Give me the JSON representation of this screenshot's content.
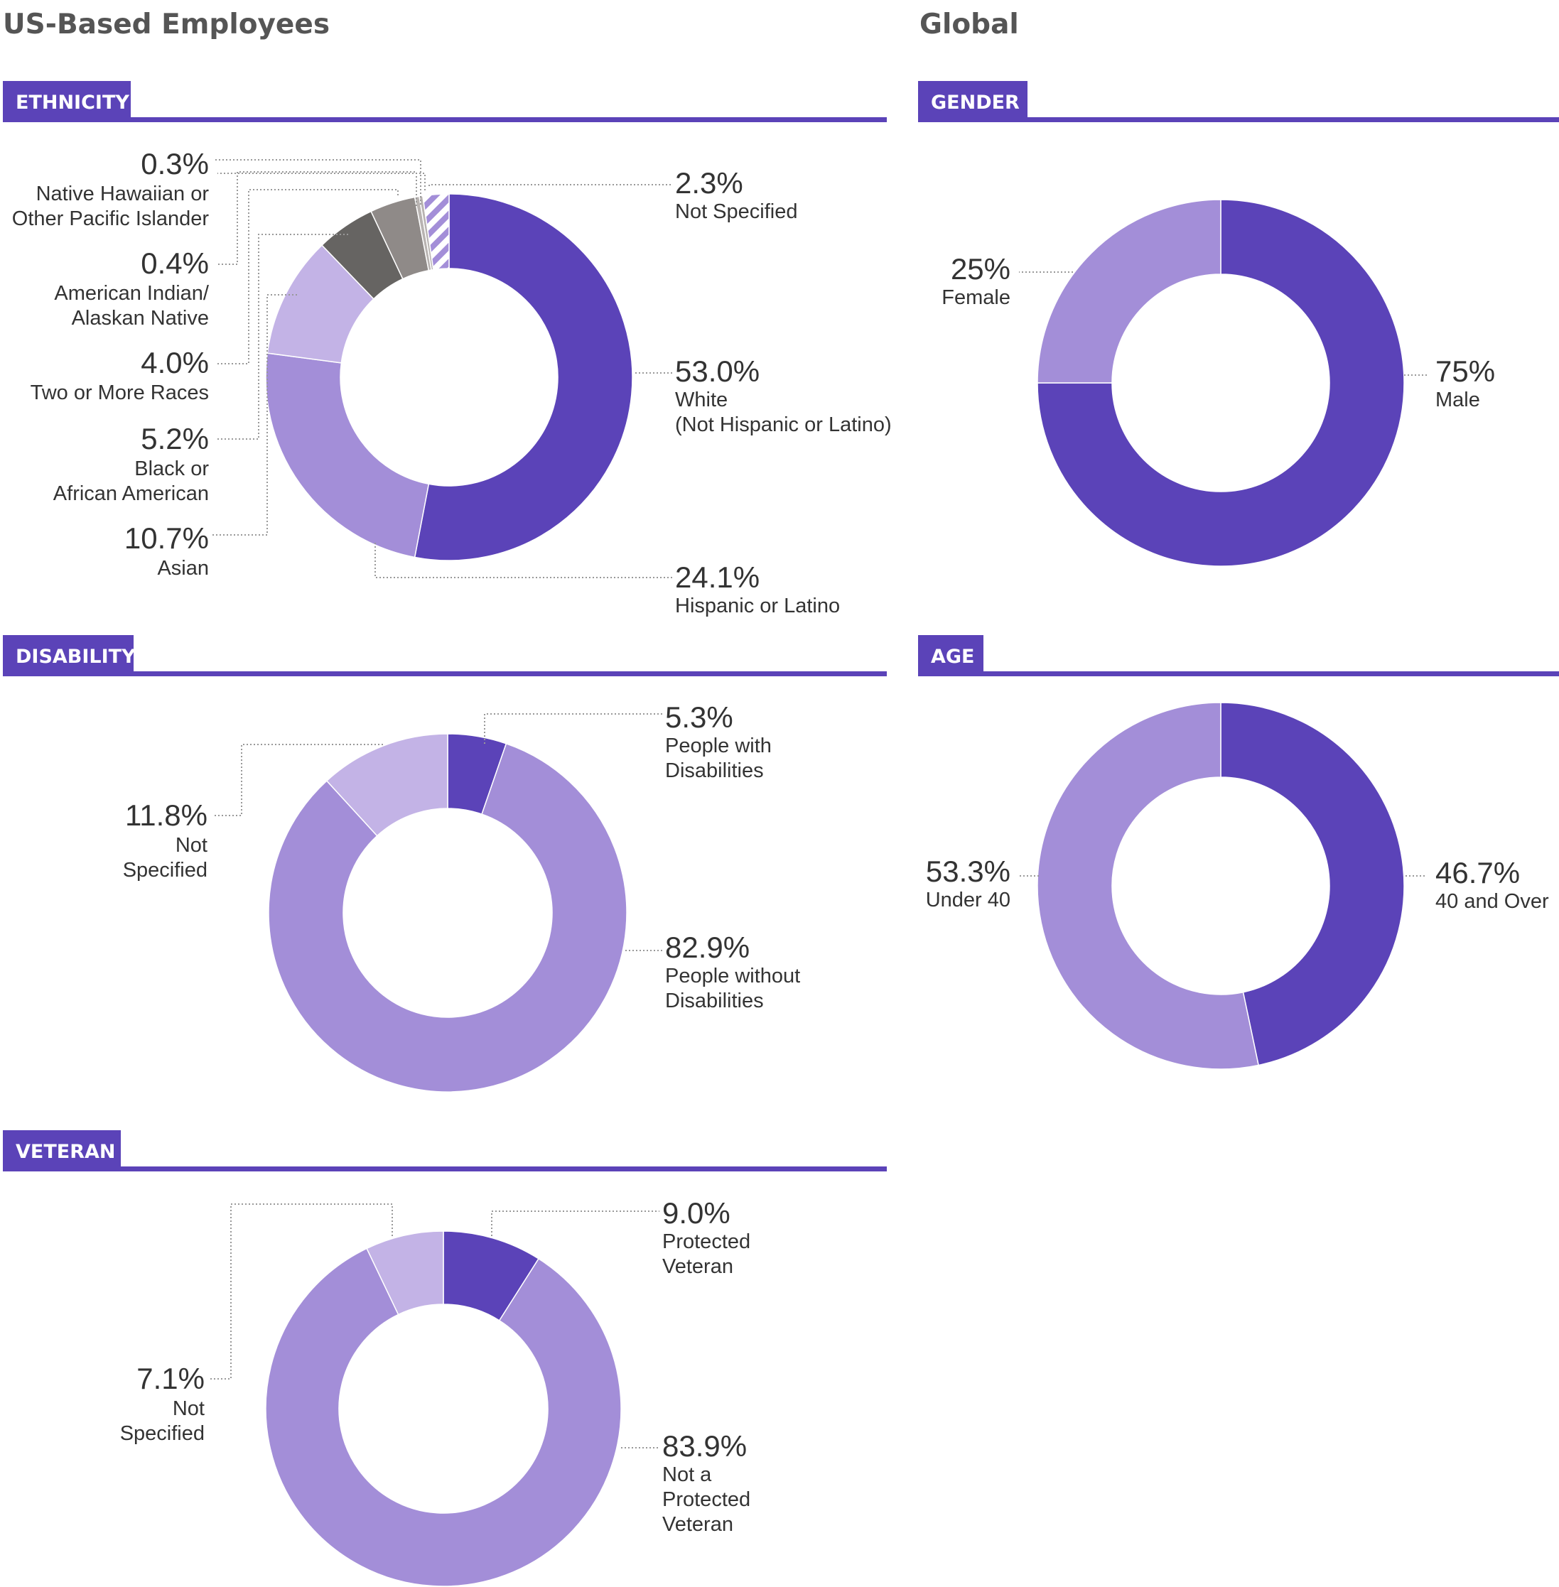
{
  "titles": {
    "us": "US-Based Employees",
    "global": "Global"
  },
  "sections": {
    "ethnicity": "ETHNICITY",
    "disability": "DISABILITY",
    "veteran": "VETERAN",
    "gender": "GENDER",
    "age": "AGE"
  },
  "colors": {
    "accent": "#5b43b8",
    "mid": "#a38ed8",
    "light": "#c3b3e6",
    "gray_dark": "#666462",
    "gray_mid": "#8f8a88",
    "gray_light": "#b8b3b1",
    "not_specified_stripe": "#a38ed8"
  },
  "chart_data": [
    {
      "id": "ethnicity",
      "type": "pie",
      "title": "ETHNICITY",
      "slices": [
        {
          "label_lines": [
            "White",
            "(Not Hispanic or Latino)"
          ],
          "value": 53.0,
          "pct_text": "53.0%",
          "color_key": "accent"
        },
        {
          "label_lines": [
            "Hispanic or Latino"
          ],
          "value": 24.1,
          "pct_text": "24.1%",
          "color_key": "mid"
        },
        {
          "label_lines": [
            "Asian"
          ],
          "value": 10.7,
          "pct_text": "10.7%",
          "color_key": "light"
        },
        {
          "label_lines": [
            "Black or",
            "African American"
          ],
          "value": 5.2,
          "pct_text": "5.2%",
          "color_key": "gray_dark"
        },
        {
          "label_lines": [
            "Two or More Races"
          ],
          "value": 4.0,
          "pct_text": "4.0%",
          "color_key": "gray_mid"
        },
        {
          "label_lines": [
            "American Indian/",
            "Alaskan Native"
          ],
          "value": 0.4,
          "pct_text": "0.4%",
          "color_key": "gray_light"
        },
        {
          "label_lines": [
            "Native Hawaiian or",
            "Other Pacific Islander"
          ],
          "value": 0.3,
          "pct_text": "0.3%",
          "color_key": "gray_light"
        },
        {
          "label_lines": [
            "Not Specified"
          ],
          "value": 2.3,
          "pct_text": "2.3%",
          "color_key": "not_specified_stripe",
          "hatched": true
        }
      ]
    },
    {
      "id": "disability",
      "type": "pie",
      "title": "DISABILITY",
      "slices": [
        {
          "label_lines": [
            "People with",
            "Disabilities"
          ],
          "value": 5.3,
          "pct_text": "5.3%",
          "color_key": "accent"
        },
        {
          "label_lines": [
            "People without",
            "Disabilities"
          ],
          "value": 82.9,
          "pct_text": "82.9%",
          "color_key": "mid"
        },
        {
          "label_lines": [
            "Not",
            "Specified"
          ],
          "value": 11.8,
          "pct_text": "11.8%",
          "color_key": "light"
        }
      ]
    },
    {
      "id": "veteran",
      "type": "pie",
      "title": "VETERAN",
      "slices": [
        {
          "label_lines": [
            "Protected",
            "Veteran"
          ],
          "value": 9.0,
          "pct_text": "9.0%",
          "color_key": "accent"
        },
        {
          "label_lines": [
            "Not a",
            "Protected",
            "Veteran"
          ],
          "value": 83.9,
          "pct_text": "83.9%",
          "color_key": "mid"
        },
        {
          "label_lines": [
            "Not",
            "Specified"
          ],
          "value": 7.1,
          "pct_text": "7.1%",
          "color_key": "light"
        }
      ]
    },
    {
      "id": "gender",
      "type": "pie",
      "title": "GENDER",
      "slices": [
        {
          "label_lines": [
            "Male"
          ],
          "value": 75,
          "pct_text": "75%",
          "color_key": "accent"
        },
        {
          "label_lines": [
            "Female"
          ],
          "value": 25,
          "pct_text": "25%",
          "color_key": "mid"
        }
      ]
    },
    {
      "id": "age",
      "type": "pie",
      "title": "AGE",
      "slices": [
        {
          "label_lines": [
            "40 and Over"
          ],
          "value": 46.7,
          "pct_text": "46.7%",
          "color_key": "accent"
        },
        {
          "label_lines": [
            "Under 40"
          ],
          "value": 53.3,
          "pct_text": "53.3%",
          "color_key": "mid"
        }
      ]
    }
  ]
}
